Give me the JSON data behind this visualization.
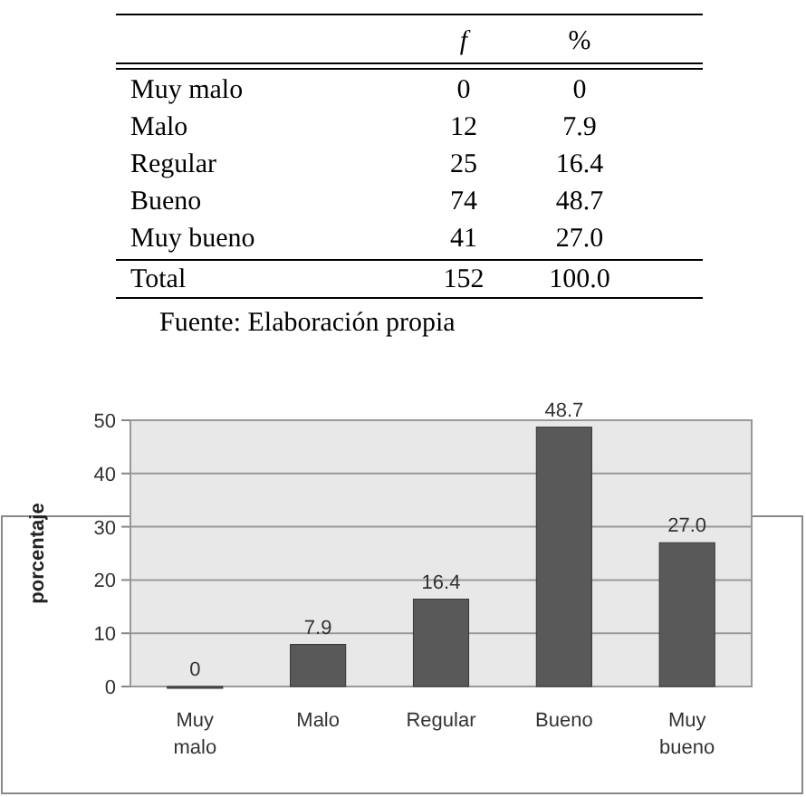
{
  "chart_data": [
    {
      "type": "other",
      "categories": [
        "Muy malo",
        "Malo",
        "Regular",
        "Bueno",
        "Muy bueno",
        "Total"
      ],
      "series": [
        {
          "name": "f",
          "values": [
            0,
            12,
            25,
            74,
            41,
            152
          ],
          "value_labels": [
            "0",
            "12",
            "25",
            "74",
            "41",
            "152"
          ]
        },
        {
          "name": "%",
          "values": [
            0,
            7.9,
            16.4,
            48.7,
            27.0,
            100.0
          ],
          "value_labels": [
            "0",
            "7.9",
            "16.4",
            "48.7",
            "27.0",
            "100.0"
          ]
        }
      ],
      "annotations": [
        "Fuente: Elaboración propia"
      ]
    },
    {
      "type": "bar",
      "categories": [
        "Muy malo",
        "Malo",
        "Regular",
        "Bueno",
        "Muy bueno"
      ],
      "values": [
        0,
        7.9,
        16.4,
        48.7,
        27.0
      ],
      "value_labels": [
        "0",
        "7.9",
        "16.4",
        "48.7",
        "27.0"
      ],
      "color": "#595959",
      "ylabel": "porcentaje",
      "ylim": [
        0,
        50
      ],
      "yticks": [
        0,
        10,
        20,
        30,
        40,
        50
      ],
      "grid": "y"
    }
  ]
}
